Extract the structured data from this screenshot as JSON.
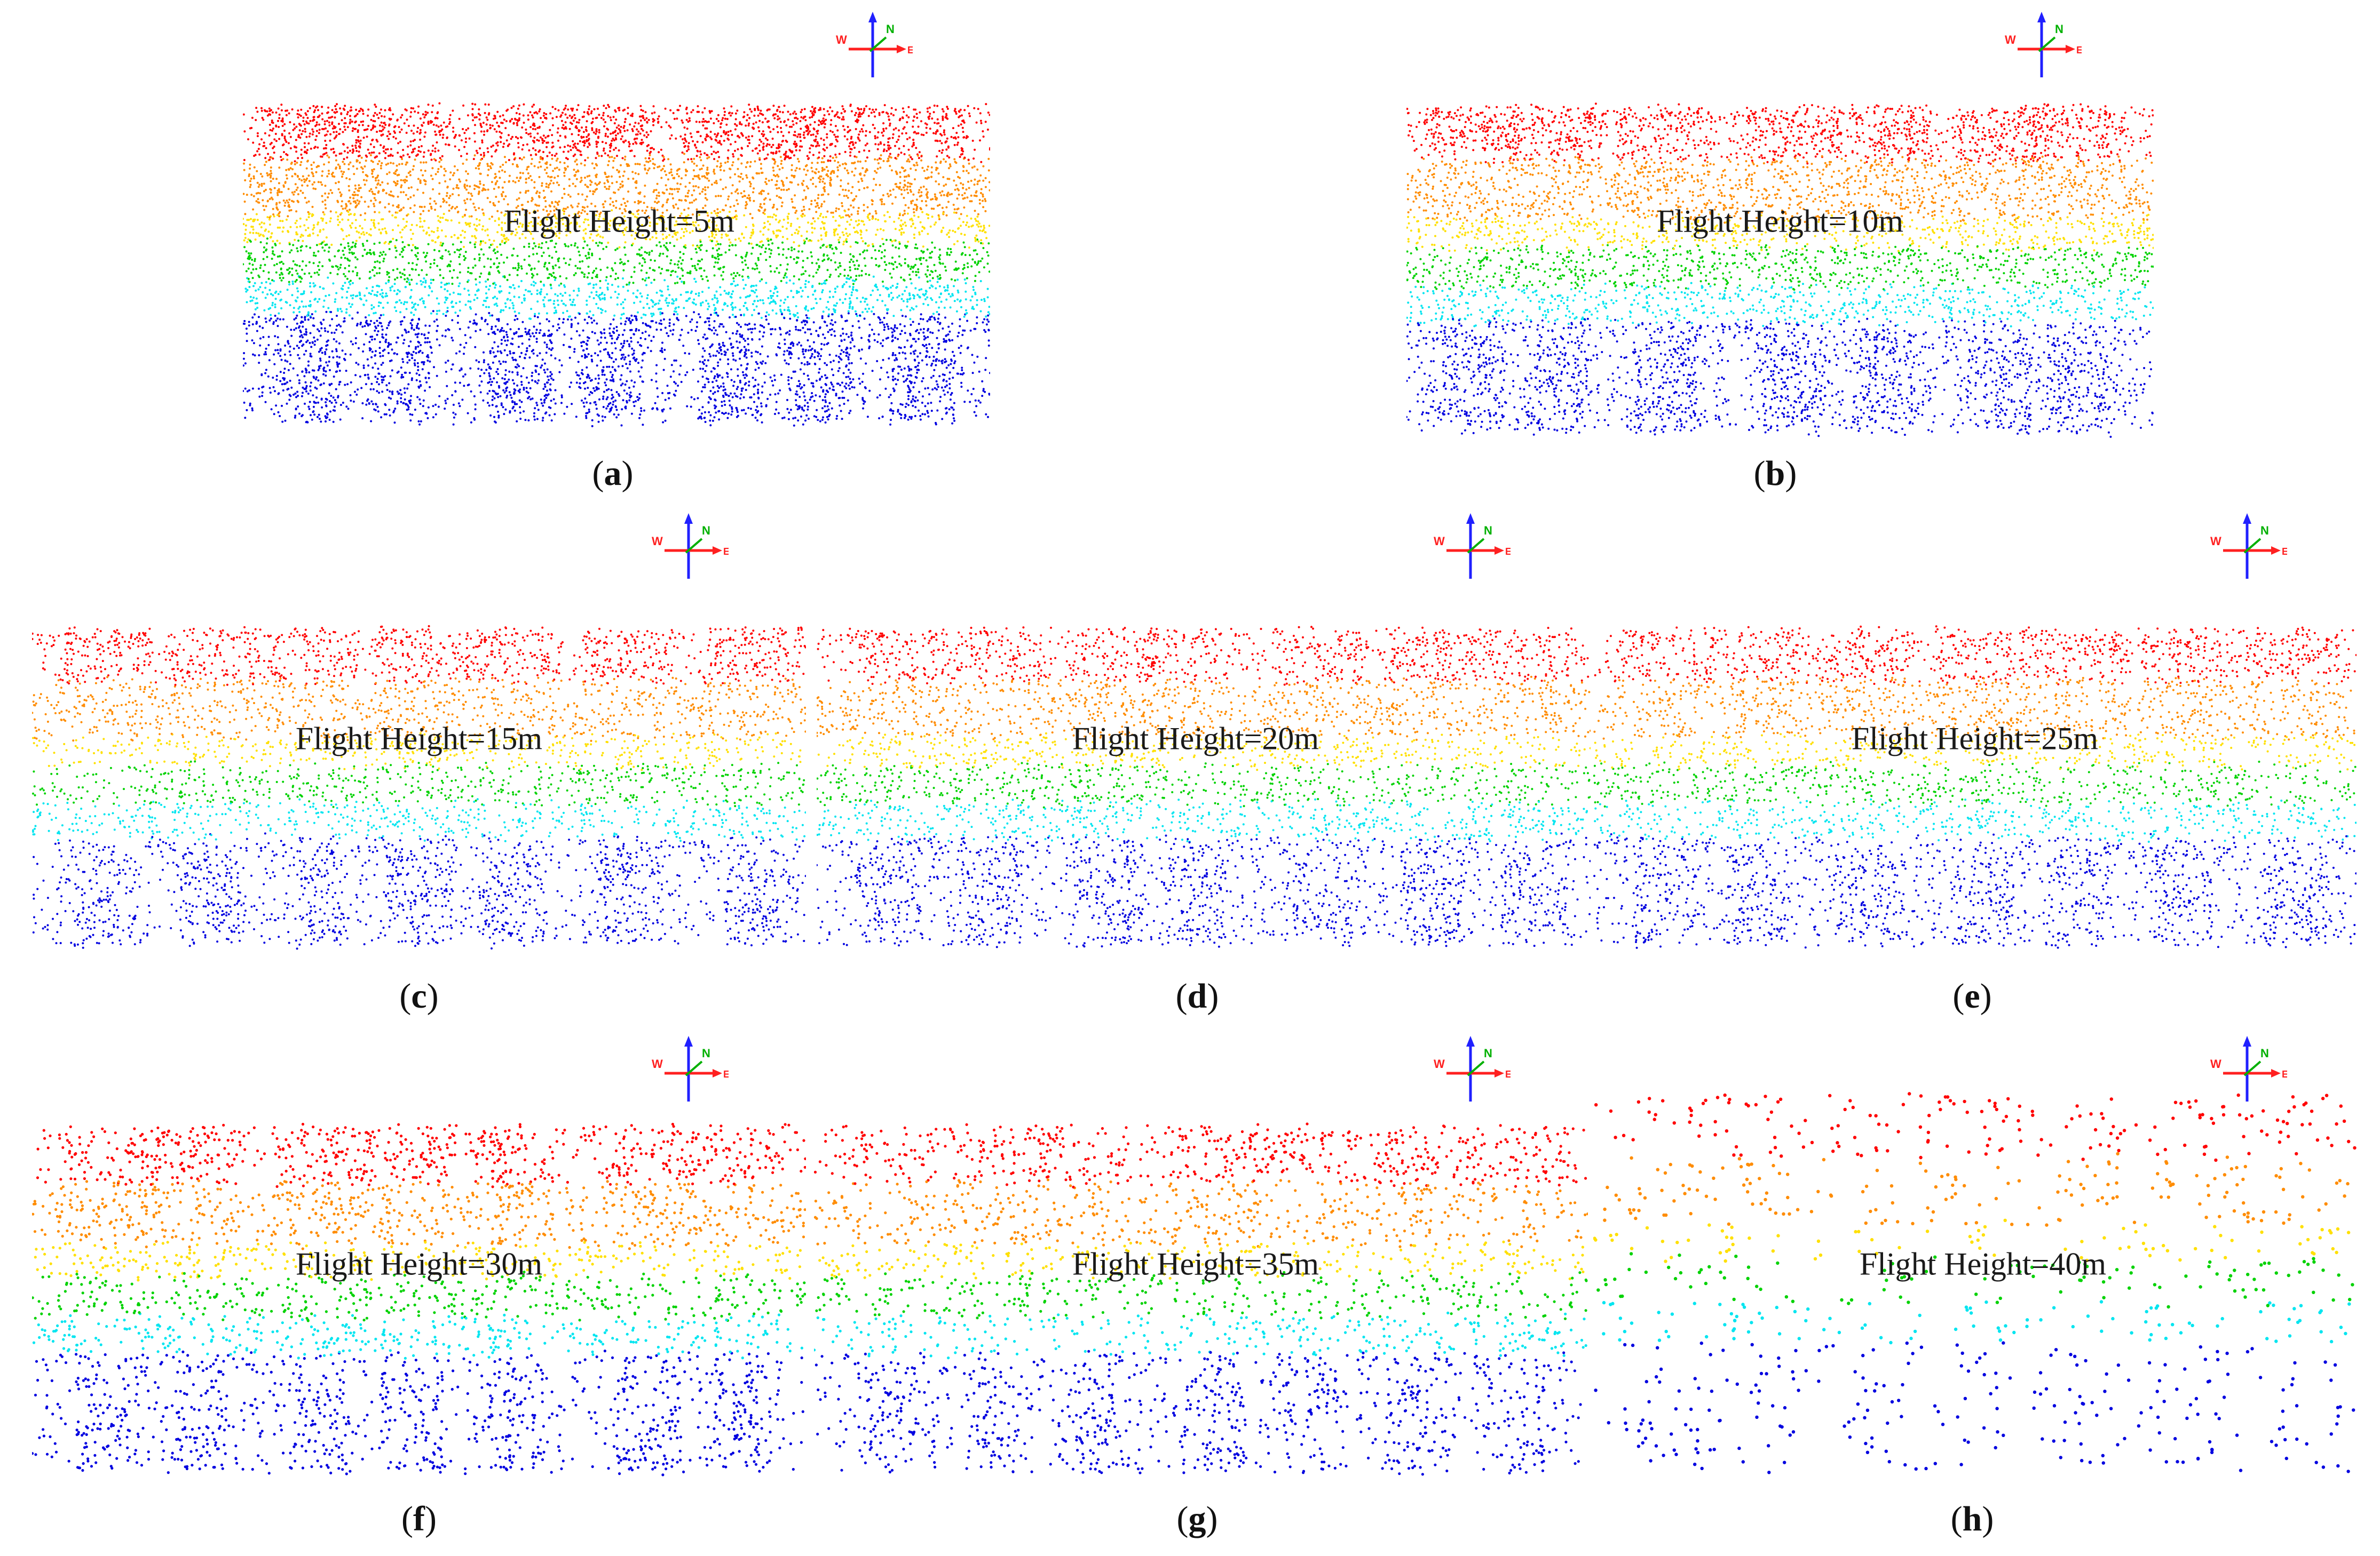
{
  "figure": {
    "panels": [
      {
        "id": "a",
        "caption_letter": "a",
        "label": "Flight Height=5m",
        "flight_height_m": 5
      },
      {
        "id": "b",
        "caption_letter": "b",
        "label": "Flight Height=10m",
        "flight_height_m": 10
      },
      {
        "id": "c",
        "caption_letter": "c",
        "label": "Flight Height=15m",
        "flight_height_m": 15
      },
      {
        "id": "d",
        "caption_letter": "d",
        "label": "Flight Height=20m",
        "flight_height_m": 20
      },
      {
        "id": "e",
        "caption_letter": "e",
        "label": "Flight Height=25m",
        "flight_height_m": 25
      },
      {
        "id": "f",
        "caption_letter": "f",
        "label": "Flight Height=30m",
        "flight_height_m": 30
      },
      {
        "id": "g",
        "caption_letter": "g",
        "label": "Flight Height=35m",
        "flight_height_m": 35
      },
      {
        "id": "h",
        "caption_letter": "h",
        "label": "Flight Height=40m",
        "flight_height_m": 40
      }
    ],
    "compass": {
      "west": "W",
      "east": "E",
      "north": "N"
    },
    "caption_open": "(",
    "caption_close": ")",
    "colors": {
      "red": "#ff0000",
      "orange": "#ff8c00",
      "yellow": "#ffe000",
      "green": "#00d200",
      "cyan": "#00e5f0",
      "blue": "#0000e0",
      "axis_blue": "#2020ff",
      "axis_red": "#ff2020",
      "axis_green": "#00b000"
    }
  }
}
